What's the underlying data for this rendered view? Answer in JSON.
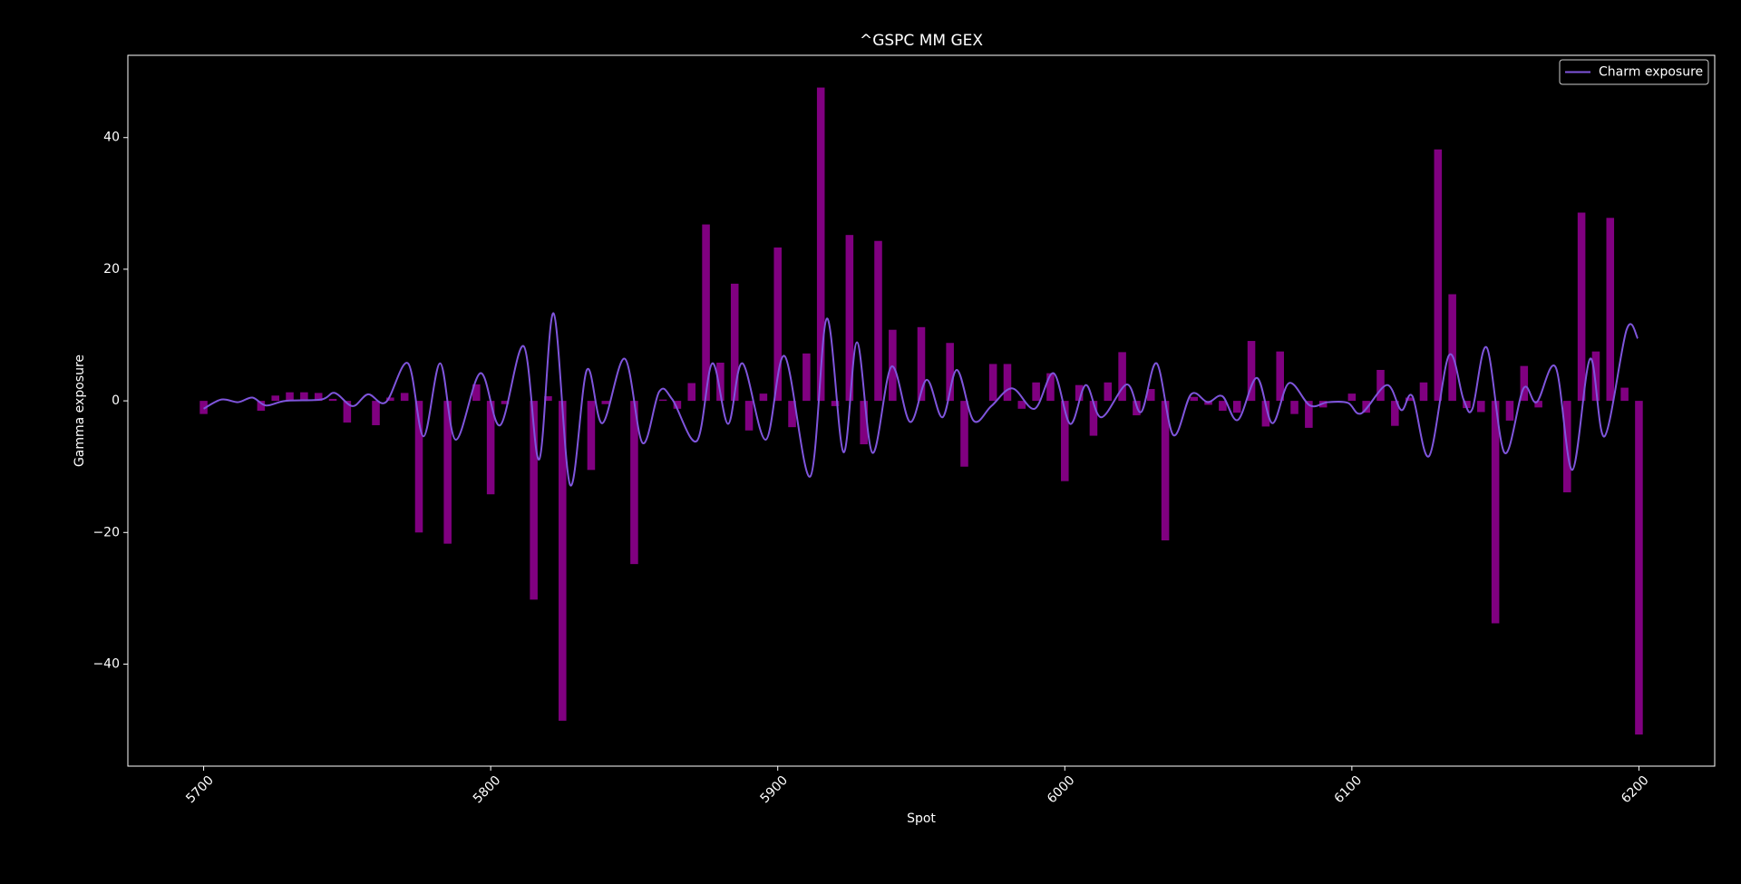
{
  "chart_data": {
    "type": "bar",
    "title": "^GSPC MM GEX",
    "xlabel": "Spot",
    "ylabel": "Gamma exposure",
    "x": [
      5700,
      5705,
      5710,
      5715,
      5720,
      5725,
      5730,
      5735,
      5740,
      5745,
      5750,
      5755,
      5760,
      5765,
      5770,
      5775,
      5780,
      5785,
      5790,
      5795,
      5800,
      5805,
      5810,
      5815,
      5820,
      5825,
      5830,
      5835,
      5840,
      5845,
      5850,
      5855,
      5860,
      5865,
      5870,
      5875,
      5880,
      5885,
      5890,
      5895,
      5900,
      5905,
      5910,
      5915,
      5920,
      5925,
      5930,
      5935,
      5940,
      5945,
      5950,
      5955,
      5960,
      5965,
      5970,
      5975,
      5980,
      5985,
      5990,
      5995,
      6000,
      6005,
      6010,
      6015,
      6020,
      6025,
      6030,
      6035,
      6040,
      6045,
      6050,
      6055,
      6060,
      6065,
      6070,
      6075,
      6080,
      6085,
      6090,
      6095,
      6100,
      6105,
      6110,
      6115,
      6120,
      6125,
      6130,
      6135,
      6140,
      6145,
      6150,
      6155,
      6160,
      6165,
      6170,
      6175,
      6180,
      6185,
      6190,
      6195,
      6200
    ],
    "values": [
      -2,
      0,
      0,
      0,
      -1.5,
      0.8,
      1.3,
      1.3,
      1.2,
      0.3,
      -3.3,
      0,
      -3.7,
      0.5,
      1.2,
      -20,
      0,
      -21.7,
      0,
      2.5,
      -14.2,
      -0.5,
      0,
      -30.2,
      0.7,
      -48.6,
      0,
      -10.5,
      -0.5,
      0,
      -24.8,
      0,
      0.2,
      -1.2,
      2.7,
      26.8,
      5.8,
      17.8,
      -4.5,
      1.1,
      23.3,
      -4,
      7.2,
      47.6,
      -0.8,
      25.2,
      -6.6,
      24.3,
      10.8,
      0,
      11.2,
      0,
      8.8,
      -10,
      0,
      5.6,
      5.6,
      -1.2,
      2.8,
      4.2,
      -12.2,
      2.4,
      -5.3,
      2.8,
      7.4,
      -2.2,
      1.8,
      -21.2,
      0,
      0.6,
      -0.6,
      -1.5,
      -1.8,
      9.1,
      -3.9,
      7.5,
      -2,
      -4.1,
      -1,
      0,
      1.1,
      -1.8,
      4.7,
      -3.8,
      0.5,
      2.8,
      38.2,
      16.2,
      -1.1,
      -1.7,
      -33.8,
      -3,
      5.3,
      -1,
      0,
      -13.9,
      28.6,
      7.5,
      27.8,
      2,
      -50.7
    ],
    "color": "#800080",
    "series": [
      {
        "name": "Charm exposure",
        "color": "#7f55dc",
        "x": [
          5700,
          5706.2,
          5712.0,
          5717.0,
          5721.7,
          5728.6,
          5741.0,
          5745.7,
          5751.9,
          5757.3,
          5763.5,
          5771.2,
          5776.6,
          5782.4,
          5787.8,
          5796.4,
          5803.3,
          5811.5,
          5816.9,
          5821.9,
          5827.7,
          5833.5,
          5838.9,
          5846.7,
          5852.9,
          5858.7,
          5863.3,
          5871.8,
          5877.2,
          5882.7,
          5887.7,
          5895.8,
          5902.4,
          5911.3,
          5917.1,
          5922.9,
          5927.6,
          5933.0,
          5939.6,
          5946.1,
          5951.9,
          5957.4,
          5962.4,
          5968.2,
          5974.4,
          5981.7,
          5989.5,
          5996.1,
          6001.9,
          6007.3,
          6012.7,
          6021.6,
          6026.6,
          6032.0,
          6037.8,
          6044.0,
          6049.8,
          6054.9,
          6060.3,
          6066.9,
          6072.3,
          6078.1,
          6085.4,
          6091.6,
          6098.6,
          6103.3,
          6112.2,
          6117.2,
          6121.1,
          6126.9,
          6133.8,
          6138.9,
          6142.0,
          6147.0,
          6153.2,
          6159.8,
          6164.4,
          6171.0,
          6176.8,
          6183.0,
          6188.0,
          6195.7,
          6199.6
        ],
        "values": [
          -1.2,
          0.2,
          -0.2,
          0.5,
          -0.7,
          0,
          0.2,
          1.2,
          -0.8,
          1.0,
          -0.2,
          5.7,
          -5.4,
          5.7,
          -5.9,
          4.2,
          -3.7,
          8.3,
          -8.9,
          13.3,
          -12.8,
          4.7,
          -3.4,
          6.4,
          -6.4,
          1.4,
          0.2,
          -6.1,
          5.7,
          -3.5,
          5.7,
          -5.9,
          6.8,
          -11.5,
          12.5,
          -7.8,
          8.9,
          -7.9,
          5.2,
          -3.2,
          3.2,
          -2.5,
          4.7,
          -3.0,
          -0.8,
          1.9,
          -1.2,
          4.2,
          -3.5,
          2.4,
          -2.5,
          2.5,
          -1.7,
          5.7,
          -5.2,
          1.0,
          -0.2,
          0.7,
          -2.9,
          3.5,
          -3.4,
          2.7,
          -0.7,
          -0.2,
          -0.3,
          -1.9,
          2.4,
          -1.4,
          0.7,
          -8.4,
          6.9,
          0.2,
          -1.2,
          8.1,
          -7.9,
          1.9,
          -0.2,
          5.1,
          -10.5,
          6.4,
          -5.4,
          10.8,
          9.5
        ]
      }
    ],
    "xlim": [
      5673.6,
      6226.4
    ],
    "xticks": [
      5700,
      5800,
      5900,
      6000,
      6100,
      6200
    ],
    "ylim": [
      -55.5,
      52.5
    ],
    "yticks": [
      {
        "value": -40,
        "label": "−40"
      },
      {
        "value": -20,
        "label": "−20"
      },
      0,
      20,
      40
    ],
    "legend": "upper right"
  }
}
